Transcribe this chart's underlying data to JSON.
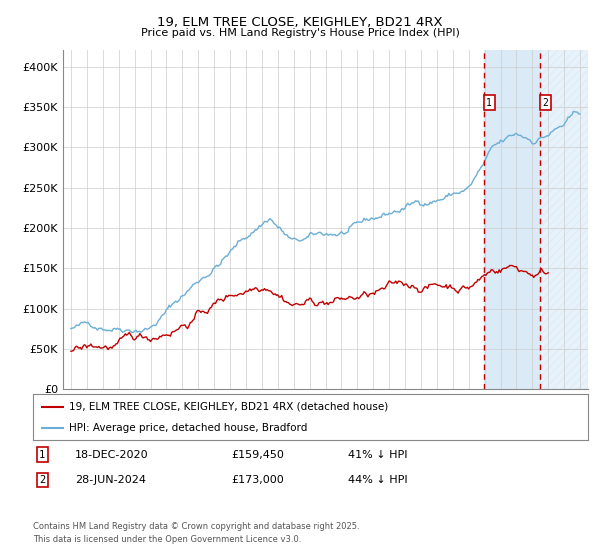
{
  "title": "19, ELM TREE CLOSE, KEIGHLEY, BD21 4RX",
  "subtitle": "Price paid vs. HM Land Registry's House Price Index (HPI)",
  "ylim": [
    0,
    420000
  ],
  "yticks": [
    0,
    50000,
    100000,
    150000,
    200000,
    250000,
    300000,
    350000,
    400000
  ],
  "ytick_labels": [
    "£0",
    "£50K",
    "£100K",
    "£150K",
    "£200K",
    "£250K",
    "£300K",
    "£350K",
    "£400K"
  ],
  "xmin": 1994.5,
  "xmax": 2027.5,
  "marker1_x": 2020.96,
  "marker2_x": 2024.49,
  "transaction1_date": "18-DEC-2020",
  "transaction1_price": "£159,450",
  "transaction1_pct": "41% ↓ HPI",
  "transaction2_date": "28-JUN-2024",
  "transaction2_price": "£173,000",
  "transaction2_pct": "44% ↓ HPI",
  "legend_line1": "19, ELM TREE CLOSE, KEIGHLEY, BD21 4RX (detached house)",
  "legend_line2": "HPI: Average price, detached house, Bradford",
  "footer": "Contains HM Land Registry data © Crown copyright and database right 2025.\nThis data is licensed under the Open Government Licence v3.0.",
  "hpi_color": "#6aaed6",
  "price_color": "#c00000",
  "background_color": "#ffffff",
  "grid_color": "#cccccc",
  "shaded_color": "#daeaf7"
}
